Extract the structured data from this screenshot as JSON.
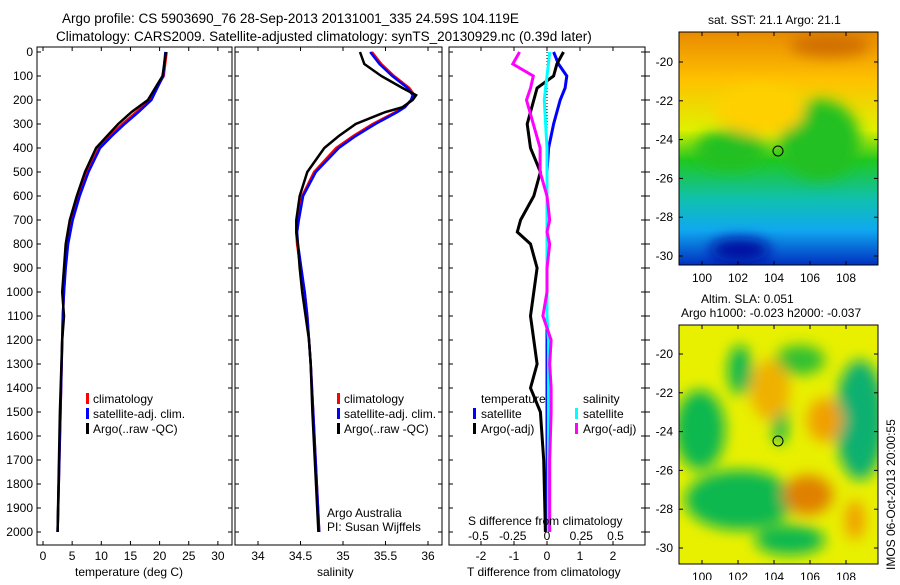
{
  "title_line1": "Argo profile: CS 5903690_76 28-Sep-2013 20131001_335 24.59S 104.119E",
  "title_line2": "Climatology: CARS2009. Satellite-adjusted climatology: synTS_20130929.nc (0.39d later)",
  "colors": {
    "climatology": "#ff0000",
    "satellite": "#0000ff",
    "argo": "#000000",
    "s_satellite": "#00ffff",
    "s_argo": "#ff00ff"
  },
  "chart_data": [
    {
      "type": "line",
      "name": "temperature",
      "xlabel": "temperature (deg C)",
      "xticks": [
        "0",
        "5",
        "10",
        "15",
        "20",
        "25",
        "30"
      ],
      "xtick_values": [
        0,
        5,
        10,
        15,
        20,
        25,
        30
      ],
      "ylim": [
        0,
        2050
      ],
      "yticks": [
        "0",
        "100",
        "200",
        "300",
        "400",
        "500",
        "600",
        "700",
        "800",
        "900",
        "1000",
        "1100",
        "1200",
        "1300",
        "1400",
        "1500",
        "1600",
        "1700",
        "1800",
        "1900",
        "2000"
      ],
      "depth": [
        0,
        100,
        200,
        250,
        300,
        350,
        400,
        500,
        600,
        700,
        800,
        900,
        1000,
        1100,
        1200,
        1500,
        2000
      ],
      "series": [
        {
          "name": "climatology",
          "values": [
            21.2,
            20.7,
            18.3,
            16,
            13.6,
            11.5,
            9.6,
            7.6,
            6.1,
            5.0,
            4.2,
            3.8,
            3.6,
            3.4,
            3.3,
            3.0,
            2.5
          ]
        },
        {
          "name": "satellite-adj. clim.",
          "values": [
            21.0,
            20.6,
            18.6,
            16.4,
            14.0,
            11.8,
            9.8,
            7.8,
            6.3,
            5.1,
            4.3,
            3.9,
            3.6,
            3.4,
            3.3,
            3.0,
            2.5
          ]
        },
        {
          "name": "Argo(..raw -QC)",
          "values": [
            21.1,
            20.5,
            18.0,
            15.2,
            12.9,
            11.0,
            9.1,
            7.2,
            5.8,
            4.6,
            3.9,
            3.6,
            3.3,
            3.6,
            3.3,
            2.9,
            2.5
          ]
        }
      ],
      "legend": [
        "climatology",
        "satellite-adj. clim.",
        "Argo(..raw -QC)"
      ]
    },
    {
      "type": "line",
      "name": "salinity",
      "xlabel": "salinity",
      "xticks": [
        "34",
        "34.5",
        "35",
        "35.5",
        "36"
      ],
      "xtick_values": [
        34,
        34.5,
        35,
        35.5,
        36
      ],
      "depth": [
        0,
        50,
        100,
        150,
        180,
        200,
        230,
        250,
        300,
        350,
        400,
        500,
        600,
        700,
        750,
        800,
        900,
        1000,
        1100,
        1200,
        1300,
        1500,
        2000
      ],
      "series": [
        {
          "name": "climatology",
          "values": [
            35.34,
            35.45,
            35.6,
            35.78,
            35.84,
            35.8,
            35.72,
            35.62,
            35.35,
            35.12,
            34.92,
            34.66,
            34.52,
            34.47,
            34.45,
            34.46,
            34.5,
            34.55,
            34.58,
            34.6,
            34.62,
            34.65,
            34.72
          ]
        },
        {
          "name": "satellite-adj. clim.",
          "values": [
            35.32,
            35.43,
            35.58,
            35.76,
            35.82,
            35.8,
            35.73,
            35.64,
            35.38,
            35.15,
            34.95,
            34.68,
            34.53,
            34.48,
            34.46,
            34.47,
            34.51,
            34.55,
            34.58,
            34.6,
            34.62,
            34.65,
            34.72
          ]
        },
        {
          "name": "Argo(..raw -QC)",
          "values": [
            35.2,
            35.25,
            35.45,
            35.7,
            35.86,
            35.82,
            35.7,
            35.5,
            35.15,
            34.95,
            34.78,
            34.58,
            34.49,
            34.45,
            34.45,
            34.47,
            34.49,
            34.52,
            34.56,
            34.6,
            34.62,
            34.64,
            34.71
          ]
        }
      ],
      "legend": [
        "climatology",
        "satellite-adj. clim.",
        "Argo(..raw -QC)"
      ],
      "annotation": [
        "Argo Australia",
        "PI: Susan Wijffels"
      ]
    },
    {
      "type": "line",
      "name": "difference",
      "xlabel": "T difference from climatology",
      "xlabel_top": "S difference from climatology",
      "xticks": [
        "-2",
        "-1",
        "0",
        "1",
        "2"
      ],
      "xtick_values": [
        -2,
        -1,
        0,
        1,
        2
      ],
      "s_xticks": [
        "-0.5",
        "-0.25",
        "0",
        "0.25",
        "0.5"
      ],
      "s_xtick_values": [
        -0.5,
        -0.25,
        0,
        0.25,
        0.5
      ],
      "depth": [
        0,
        50,
        100,
        150,
        200,
        300,
        400,
        500,
        600,
        700,
        750,
        800,
        900,
        1000,
        1100,
        1200,
        1300,
        1400,
        1500,
        1700,
        2000
      ],
      "series": [
        {
          "name": "temperature satellite",
          "axis": "T",
          "values": [
            0.2,
            0.35,
            0.6,
            0.55,
            0.4,
            0.2,
            0.05,
            0.0,
            0.0,
            0.0,
            0.0,
            0.0,
            0.0,
            0.0,
            0.0,
            0.0,
            0.0,
            0.0,
            0.0,
            0.0,
            0.0
          ]
        },
        {
          "name": "temperature Argo(-adj)",
          "axis": "T",
          "values": [
            0.5,
            0.3,
            0.2,
            -0.3,
            -0.4,
            -0.6,
            -0.5,
            -0.2,
            -0.4,
            -0.8,
            -0.9,
            -0.5,
            -0.3,
            -0.4,
            -0.5,
            -0.4,
            -0.3,
            -0.5,
            -0.2,
            -0.1,
            -0.05
          ]
        },
        {
          "name": "salinity satellite",
          "axis": "S",
          "values": [
            0.02,
            0.01,
            0.0,
            -0.01,
            -0.02,
            -0.01,
            0.0,
            0.0,
            0.0,
            0.0,
            0.0,
            0.0,
            0.0,
            0.0,
            0.0,
            0.01,
            0.01,
            0.01,
            0.01,
            0.01,
            0.01
          ]
        },
        {
          "name": "salinity Argo(-adj)",
          "axis": "S",
          "values": [
            -0.2,
            -0.25,
            -0.1,
            -0.12,
            -0.15,
            -0.1,
            -0.05,
            -0.05,
            0.0,
            0.02,
            0.0,
            0.02,
            0.0,
            0.0,
            -0.03,
            0.03,
            0.02,
            0.03,
            0.03,
            0.02,
            0.02
          ]
        }
      ],
      "legend_headers": [
        "temperature",
        "salinity"
      ],
      "legend": [
        "satellite",
        "Argo(-adj)",
        "satellite",
        "Argo(-adj)"
      ]
    }
  ],
  "maps": [
    {
      "title": "sat. SST: 21.1 Argo: 21.1",
      "lat_ticks": [
        "-20",
        "-22",
        "-24",
        "-26",
        "-28",
        "-30"
      ],
      "lon_ticks": [
        "100",
        "102",
        "104",
        "106",
        "108"
      ]
    },
    {
      "title_line1": "Altim. SLA: 0.051",
      "title_line2": "Argo h1000: -0.023 h2000: -0.037",
      "lat_ticks": [
        "-20",
        "-22",
        "-24",
        "-26",
        "-28",
        "-30"
      ],
      "lon_ticks": [
        "100",
        "102",
        "104",
        "106",
        "108"
      ]
    }
  ],
  "footer": "IMOS 06-Oct-2013 20:00:55"
}
